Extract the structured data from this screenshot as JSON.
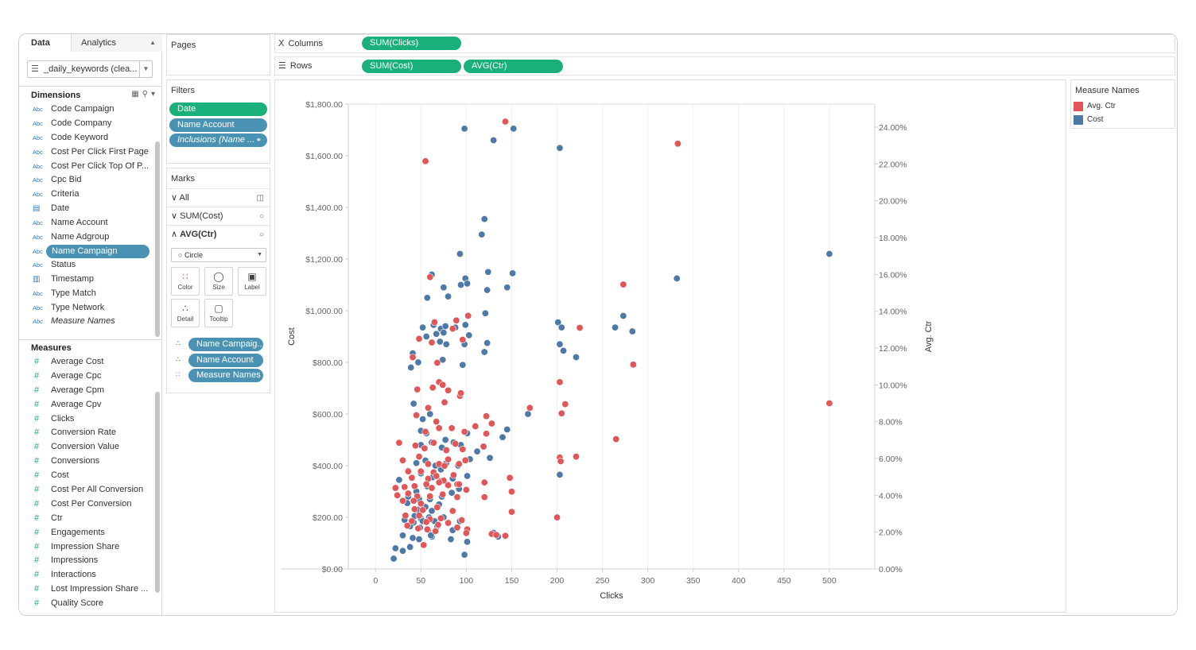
{
  "data_pane": {
    "tab_data": "Data",
    "tab_analytics": "Analytics",
    "datasource": "_daily_keywords (clea...",
    "dimensions_label": "Dimensions",
    "measures_label": "Measures",
    "dimensions": [
      {
        "name": "Code Campaign",
        "type": "Abc"
      },
      {
        "name": "Code Company",
        "type": "Abc"
      },
      {
        "name": "Code Keyword",
        "type": "Abc"
      },
      {
        "name": "Cost Per Click First Page",
        "type": "Abc"
      },
      {
        "name": "Cost Per Click Top Of P...",
        "type": "Abc"
      },
      {
        "name": "Cpc Bid",
        "type": "Abc"
      },
      {
        "name": "Criteria",
        "type": "Abc"
      },
      {
        "name": "Date",
        "type": "date"
      },
      {
        "name": "Name Account",
        "type": "Abc"
      },
      {
        "name": "Name Adgroup",
        "type": "Abc"
      },
      {
        "name": "Name Campaign",
        "type": "Abc"
      },
      {
        "name": "Status",
        "type": "Abc"
      },
      {
        "name": "Timestamp",
        "type": "datetime"
      },
      {
        "name": "Type Match",
        "type": "Abc"
      },
      {
        "name": "Type Network",
        "type": "Abc"
      },
      {
        "name": "Measure Names",
        "type": "Abc"
      }
    ],
    "measures": [
      "Average Cost",
      "Average Cpc",
      "Average Cpm",
      "Average Cpv",
      "Clicks",
      "Conversion Rate",
      "Conversion Value",
      "Conversions",
      "Cost",
      "Cost Per All Conversion",
      "Cost Per Conversion",
      "Ctr",
      "Engagements",
      "Impression Share",
      "Impressions",
      "Interactions",
      "Lost Impression Share ...",
      "Quality Score"
    ]
  },
  "pages": {
    "title": "Pages"
  },
  "filters": {
    "title": "Filters",
    "items": [
      "Date",
      "Name Account",
      "Inclusions (Name ..."
    ]
  },
  "marks": {
    "title": "Marks",
    "all": "All",
    "sum_cost": "SUM(Cost)",
    "avg_ctr": "AVG(Ctr)",
    "mark_type": "Circle",
    "buttons": {
      "color": "Color",
      "size": "Size",
      "label": "Label",
      "detail": "Detail",
      "tooltip": "Tooltip"
    },
    "fields": [
      "Name Campaig..",
      "Name Account",
      "Measure Names"
    ]
  },
  "shelves": {
    "columns_label": "Columns",
    "rows_label": "Rows",
    "columns_pills": [
      "SUM(Clicks)"
    ],
    "rows_pills": [
      "SUM(Cost)",
      "AVG(Ctr)"
    ]
  },
  "legend": {
    "title": "Measure Names",
    "items": [
      {
        "label": "Avg. Ctr",
        "color": "#e15759"
      },
      {
        "label": "Cost",
        "color": "#4e79a7"
      }
    ]
  },
  "chart_data": {
    "type": "scatter",
    "xlabel": "Clicks",
    "ylabel": "Cost",
    "y2label": "Avg. Ctr",
    "xlim": [
      -30,
      550
    ],
    "ylim": [
      0,
      1800
    ],
    "y2lim": [
      0,
      0.2525
    ],
    "x_ticks": [
      0,
      50,
      100,
      150,
      200,
      250,
      300,
      350,
      400,
      450,
      500
    ],
    "y_ticks": [
      0,
      200,
      400,
      600,
      800,
      1000,
      1200,
      1400,
      1600,
      1800
    ],
    "y_tick_labels": [
      "$0.00",
      "$200.00",
      "$400.00",
      "$600.00",
      "$800.00",
      "$1,000.00",
      "$1,200.00",
      "$1,400.00",
      "$1,600.00",
      "$1,800.00"
    ],
    "y2_ticks": [
      0,
      0.02,
      0.04,
      0.06,
      0.08,
      0.1,
      0.12,
      0.14,
      0.16,
      0.18,
      0.2,
      0.22,
      0.24
    ],
    "y2_tick_labels": [
      "0.00%",
      "2.00%",
      "4.00%",
      "6.00%",
      "8.00%",
      "10.00%",
      "12.00%",
      "14.00%",
      "16.00%",
      "18.00%",
      "20.00%",
      "22.00%",
      "24.00%"
    ],
    "series": [
      {
        "name": "Cost",
        "color": "#4e79a7",
        "axis": "left",
        "points": [
          [
            98,
            1705
          ],
          [
            130,
            1660
          ],
          [
            152,
            1705
          ],
          [
            203,
            1630
          ],
          [
            120,
            1355
          ],
          [
            117,
            1295
          ],
          [
            93,
            1220
          ],
          [
            500,
            1220
          ],
          [
            332,
            1125
          ],
          [
            62,
            1140
          ],
          [
            75,
            1090
          ],
          [
            94,
            1100
          ],
          [
            99,
            1125
          ],
          [
            101,
            1105
          ],
          [
            124,
            1150
          ],
          [
            151,
            1145
          ],
          [
            123,
            1080
          ],
          [
            145,
            1090
          ],
          [
            57,
            1050
          ],
          [
            80,
            1055
          ],
          [
            64,
            945
          ],
          [
            52,
            935
          ],
          [
            72,
            930
          ],
          [
            77,
            940
          ],
          [
            88,
            935
          ],
          [
            99,
            945
          ],
          [
            67,
            910
          ],
          [
            75,
            915
          ],
          [
            103,
            905
          ],
          [
            121,
            990
          ],
          [
            273,
            980
          ],
          [
            201,
            955
          ],
          [
            205,
            935
          ],
          [
            264,
            935
          ],
          [
            283,
            920
          ],
          [
            225,
            935
          ],
          [
            56,
            900
          ],
          [
            71,
            880
          ],
          [
            78,
            870
          ],
          [
            98,
            870
          ],
          [
            120,
            840
          ],
          [
            123,
            875
          ],
          [
            203,
            870
          ],
          [
            207,
            845
          ],
          [
            221,
            820
          ],
          [
            41,
            835
          ],
          [
            47,
            800
          ],
          [
            39,
            780
          ],
          [
            74,
            810
          ],
          [
            96,
            790
          ],
          [
            42,
            640
          ],
          [
            60,
            600
          ],
          [
            52,
            580
          ],
          [
            50,
            535
          ],
          [
            56,
            525
          ],
          [
            77,
            500
          ],
          [
            101,
            525
          ],
          [
            145,
            540
          ],
          [
            168,
            600
          ],
          [
            140,
            510
          ],
          [
            50,
            480
          ],
          [
            62,
            490
          ],
          [
            73,
            470
          ],
          [
            86,
            490
          ],
          [
            94,
            480
          ],
          [
            104,
            425
          ],
          [
            112,
            455
          ],
          [
            126,
            430
          ],
          [
            45,
            410
          ],
          [
            55,
            420
          ],
          [
            66,
            400
          ],
          [
            78,
            410
          ],
          [
            91,
            400
          ],
          [
            36,
            380
          ],
          [
            50,
            370
          ],
          [
            63,
            355
          ],
          [
            72,
            385
          ],
          [
            85,
            350
          ],
          [
            101,
            360
          ],
          [
            26,
            345
          ],
          [
            45,
            300
          ],
          [
            57,
            320
          ],
          [
            71,
            340
          ],
          [
            84,
            295
          ],
          [
            92,
            310
          ],
          [
            36,
            280
          ],
          [
            48,
            270
          ],
          [
            60,
            270
          ],
          [
            73,
            280
          ],
          [
            35,
            255
          ],
          [
            46,
            230
          ],
          [
            55,
            240
          ],
          [
            62,
            225
          ],
          [
            70,
            250
          ],
          [
            43,
            205
          ],
          [
            50,
            195
          ],
          [
            59,
            200
          ],
          [
            32,
            190
          ],
          [
            42,
            180
          ],
          [
            52,
            185
          ],
          [
            65,
            185
          ],
          [
            38,
            165
          ],
          [
            49,
            160
          ],
          [
            58,
            150
          ],
          [
            68,
            165
          ],
          [
            85,
            150
          ],
          [
            30,
            130
          ],
          [
            41,
            120
          ],
          [
            48,
            115
          ],
          [
            62,
            125
          ],
          [
            83,
            115
          ],
          [
            101,
            105
          ],
          [
            22,
            80
          ],
          [
            30,
            70
          ],
          [
            38,
            85
          ],
          [
            98,
            55
          ],
          [
            20,
            40
          ],
          [
            61,
            130
          ],
          [
            75,
            200
          ],
          [
            93,
            185
          ],
          [
            203,
            365
          ],
          [
            130,
            140
          ],
          [
            135,
            125
          ]
        ]
      },
      {
        "name": "Avg. Ctr",
        "color": "#e15759",
        "axis": "right",
        "points": [
          [
            55,
            0.2215
          ],
          [
            143,
            0.243
          ],
          [
            333,
            0.231
          ],
          [
            273,
            0.1545
          ],
          [
            500,
            0.09
          ],
          [
            60,
            0.1585
          ],
          [
            96,
            0.1245
          ],
          [
            225,
            0.131
          ],
          [
            284,
            0.111
          ],
          [
            65,
            0.134
          ],
          [
            102,
            0.1375
          ],
          [
            89,
            0.135
          ],
          [
            85,
            0.1305
          ],
          [
            48,
            0.125
          ],
          [
            62,
            0.123
          ],
          [
            41,
            0.115
          ],
          [
            68,
            0.112
          ],
          [
            46,
            0.0975
          ],
          [
            63,
            0.0985
          ],
          [
            70,
            0.1015
          ],
          [
            74,
            0.1
          ],
          [
            80,
            0.097
          ],
          [
            93,
            0.094
          ],
          [
            94,
            0.0955
          ],
          [
            58,
            0.0875
          ],
          [
            76,
            0.0905
          ],
          [
            45,
            0.0835
          ],
          [
            170,
            0.0875
          ],
          [
            203,
            0.1015
          ],
          [
            209,
            0.0895
          ],
          [
            205,
            0.0845
          ],
          [
            122,
            0.083
          ],
          [
            67,
            0.08
          ],
          [
            128,
            0.079
          ],
          [
            70,
            0.0765
          ],
          [
            55,
            0.0745
          ],
          [
            84,
            0.0765
          ],
          [
            98,
            0.0745
          ],
          [
            110,
            0.0775
          ],
          [
            122,
            0.0735
          ],
          [
            265,
            0.0705
          ],
          [
            26,
            0.0685
          ],
          [
            44,
            0.067
          ],
          [
            54,
            0.0655
          ],
          [
            64,
            0.0685
          ],
          [
            78,
            0.0645
          ],
          [
            88,
            0.068
          ],
          [
            96,
            0.065
          ],
          [
            119,
            0.0665
          ],
          [
            221,
            0.061
          ],
          [
            203,
            0.0605
          ],
          [
            204,
            0.0585
          ],
          [
            30,
            0.059
          ],
          [
            48,
            0.061
          ],
          [
            58,
            0.057
          ],
          [
            70,
            0.057
          ],
          [
            80,
            0.0595
          ],
          [
            92,
            0.057
          ],
          [
            36,
            0.053
          ],
          [
            50,
            0.053
          ],
          [
            64,
            0.0525
          ],
          [
            76,
            0.056
          ],
          [
            86,
            0.051
          ],
          [
            99,
            0.059
          ],
          [
            148,
            0.0495
          ],
          [
            40,
            0.0495
          ],
          [
            58,
            0.049
          ],
          [
            67,
            0.0505
          ],
          [
            75,
            0.048
          ],
          [
            90,
            0.046
          ],
          [
            22,
            0.044
          ],
          [
            32,
            0.0445
          ],
          [
            43,
            0.045
          ],
          [
            56,
            0.046
          ],
          [
            62,
            0.044
          ],
          [
            70,
            0.047
          ],
          [
            80,
            0.0455
          ],
          [
            92,
            0.046
          ],
          [
            120,
            0.047
          ],
          [
            150,
            0.042
          ],
          [
            100,
            0.043
          ],
          [
            24,
            0.04
          ],
          [
            36,
            0.041
          ],
          [
            46,
            0.0395
          ],
          [
            60,
            0.0395
          ],
          [
            74,
            0.0405
          ],
          [
            90,
            0.039
          ],
          [
            120,
            0.039
          ],
          [
            150,
            0.031
          ],
          [
            30,
            0.037
          ],
          [
            42,
            0.037
          ],
          [
            50,
            0.0355
          ],
          [
            68,
            0.0335
          ],
          [
            85,
            0.0315
          ],
          [
            43,
            0.0325
          ],
          [
            52,
            0.032
          ],
          [
            33,
            0.029
          ],
          [
            48,
            0.029
          ],
          [
            60,
            0.027
          ],
          [
            72,
            0.0275
          ],
          [
            95,
            0.0265
          ],
          [
            200,
            0.028
          ],
          [
            40,
            0.026
          ],
          [
            56,
            0.0255
          ],
          [
            69,
            0.024
          ],
          [
            80,
            0.025
          ],
          [
            35,
            0.0235
          ],
          [
            47,
            0.022
          ],
          [
            57,
            0.0215
          ],
          [
            66,
            0.0205
          ],
          [
            90,
            0.0225
          ],
          [
            101,
            0.0215
          ],
          [
            128,
            0.019
          ],
          [
            133,
            0.0185
          ],
          [
            143,
            0.018
          ],
          [
            53,
            0.013
          ],
          [
            100,
            0.0195
          ]
        ]
      }
    ]
  }
}
